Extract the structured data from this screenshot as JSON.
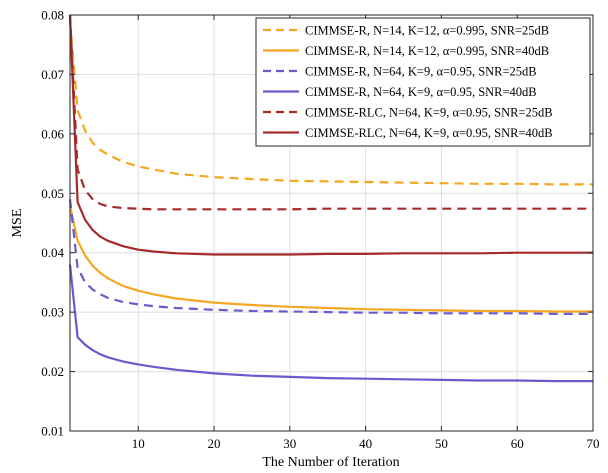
{
  "chart_data": {
    "type": "line",
    "title": "",
    "xlabel": "The Number of Iteration",
    "ylabel": "MSE",
    "xlim": [
      1,
      70
    ],
    "ylim": [
      0.01,
      0.08
    ],
    "xticks": [
      10,
      20,
      30,
      40,
      50,
      60,
      70
    ],
    "yticks": [
      0.01,
      0.02,
      0.03,
      0.04,
      0.05,
      0.06,
      0.07,
      0.08
    ],
    "xtick_labels": [
      "10",
      "20",
      "30",
      "40",
      "50",
      "60",
      "70"
    ],
    "ytick_labels": [
      "0.01",
      "0.02",
      "0.03",
      "0.04",
      "0.05",
      "0.06",
      "0.07",
      "0.08"
    ],
    "grid": true,
    "legend_position": "top-right",
    "x": [
      1,
      2,
      3,
      4,
      5,
      6,
      8,
      10,
      12,
      15,
      20,
      25,
      30,
      35,
      40,
      45,
      50,
      55,
      60,
      65,
      70
    ],
    "series": [
      {
        "name": "CIMMSE-R, N=14, K=12, α=0.995, SNR=25dB",
        "color": "#f5a623",
        "dash": "dashed",
        "values": [
          0.079,
          0.064,
          0.0605,
          0.0585,
          0.0573,
          0.0565,
          0.0553,
          0.0545,
          0.054,
          0.0533,
          0.0527,
          0.0524,
          0.0521,
          0.052,
          0.0519,
          0.0518,
          0.0517,
          0.0516,
          0.0516,
          0.0515,
          0.0515
        ]
      },
      {
        "name": "CIMMSE-R, N=14, K=12, α=0.995, SNR=40dB",
        "color": "#f5a623",
        "dash": "solid",
        "values": [
          0.048,
          0.042,
          0.0395,
          0.0378,
          0.0366,
          0.0357,
          0.0344,
          0.0336,
          0.033,
          0.0323,
          0.0316,
          0.0312,
          0.0309,
          0.0307,
          0.0305,
          0.0304,
          0.0303,
          0.0302,
          0.0302,
          0.0301,
          0.0301
        ]
      },
      {
        "name": "CIMMSE-R, N=64, K=9, α=0.95, SNR=25dB",
        "color": "#6a5acd",
        "dash": "dashed",
        "values": [
          0.049,
          0.0375,
          0.035,
          0.0338,
          0.033,
          0.0324,
          0.0317,
          0.0313,
          0.031,
          0.0307,
          0.0304,
          0.0302,
          0.0301,
          0.03,
          0.0299,
          0.0299,
          0.0298,
          0.0298,
          0.0298,
          0.0297,
          0.0297
        ]
      },
      {
        "name": "CIMMSE-R, N=64, K=9, α=0.95, SNR=40dB",
        "color": "#6a5acd",
        "dash": "solid",
        "values": [
          0.038,
          0.0258,
          0.0245,
          0.0236,
          0.0229,
          0.0224,
          0.0217,
          0.0212,
          0.0208,
          0.0203,
          0.0197,
          0.0193,
          0.0191,
          0.0189,
          0.0188,
          0.0187,
          0.0186,
          0.0185,
          0.0185,
          0.0184,
          0.0184
        ]
      },
      {
        "name": "CIMMSE-RLC, N=64, K=9, α=0.95, SNR=25dB",
        "color": "#a52a2a",
        "dash": "dashed",
        "values": [
          0.08,
          0.054,
          0.0505,
          0.049,
          0.0482,
          0.0478,
          0.0475,
          0.0474,
          0.0473,
          0.0473,
          0.0473,
          0.0473,
          0.0473,
          0.0474,
          0.0474,
          0.0474,
          0.0474,
          0.0474,
          0.0474,
          0.0474,
          0.0474
        ]
      },
      {
        "name": "CIMMSE-RLC, N=64, K=9, α=0.95, SNR=40dB",
        "color": "#a52a2a",
        "dash": "solid",
        "values": [
          0.08,
          0.0485,
          0.0455,
          0.0438,
          0.0427,
          0.042,
          0.0411,
          0.0405,
          0.0402,
          0.0399,
          0.0397,
          0.0397,
          0.0397,
          0.0398,
          0.0398,
          0.0399,
          0.0399,
          0.0399,
          0.04,
          0.04,
          0.04
        ]
      }
    ]
  }
}
